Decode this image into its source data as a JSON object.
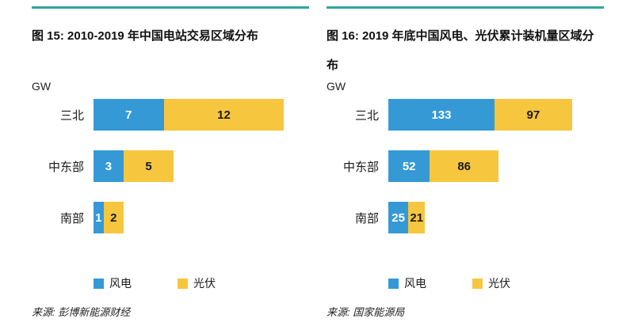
{
  "page": {
    "rule_color": "#2FA3A0",
    "accent": {
      "wind_blue": "#3599D6",
      "solar_yellow": "#F7C63F"
    }
  },
  "chart_data": [
    {
      "type": "bar",
      "orientation": "horizontal",
      "stacked": true,
      "title": "图 15: 2010-2019 年中国电站交易区域分布",
      "unit_label": "GW",
      "source": "来源: 彭博新能源财经",
      "categories": [
        "三北",
        "中东部",
        "南部"
      ],
      "series": [
        {
          "key": "wind",
          "name": "风电",
          "color": "#3599D6",
          "label_color": "#ffffff",
          "values": [
            7,
            3,
            1
          ]
        },
        {
          "key": "solar",
          "name": "光伏",
          "color": "#F7C63F",
          "label_color": "#1a1a1a",
          "values": [
            12,
            5,
            2
          ]
        }
      ],
      "xmax": 21.5,
      "grid": false,
      "legend_position": "bottom"
    },
    {
      "type": "bar",
      "orientation": "horizontal",
      "stacked": true,
      "title": "图 16: 2019 年底中国风电、光伏累计装机量区域分布",
      "unit_label": "GW",
      "source": "来源: 国家能源局",
      "categories": [
        "三北",
        "中东部",
        "南部"
      ],
      "series": [
        {
          "key": "wind",
          "name": "风电",
          "color": "#3599D6",
          "label_color": "#ffffff",
          "values": [
            133,
            52,
            25
          ]
        },
        {
          "key": "solar",
          "name": "光伏",
          "color": "#F7C63F",
          "label_color": "#1a1a1a",
          "values": [
            97,
            86,
            21
          ]
        }
      ],
      "xmax": 270,
      "grid": false,
      "legend_position": "bottom"
    }
  ]
}
